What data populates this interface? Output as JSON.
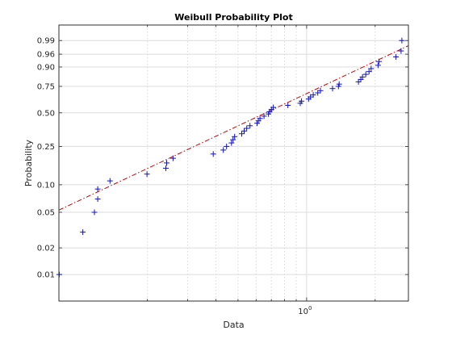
{
  "chart_data": {
    "type": "scatter",
    "title": "Weibull Probability Plot",
    "xlabel": "Data",
    "ylabel": "Probability",
    "x_scale": "log",
    "y_scale": "weibull",
    "xlim": [
      0.0817,
      2.8
    ],
    "ylim": [
      0.005,
      0.999
    ],
    "grid": true,
    "y_ticks": [
      0.01,
      0.02,
      0.05,
      0.1,
      0.25,
      0.5,
      0.75,
      0.9,
      0.96,
      0.99
    ],
    "y_tick_labels": [
      "0.01",
      "0.02",
      "0.05",
      "0.10",
      "0.25",
      "0.50",
      "0.75",
      "0.90",
      "0.96",
      "0.99"
    ],
    "x_minor_grid": [
      0.2,
      0.3,
      0.4,
      0.5,
      0.6,
      0.7,
      0.8,
      0.9,
      2
    ],
    "x_tick": 1,
    "x_tick_label_base": "10",
    "x_tick_label_exp": "0",
    "colors": {
      "markers": "#1010c8",
      "fit_line": "#cc0000"
    },
    "fit_line": {
      "points": [
        [
          0.0817,
          0.0528
        ],
        [
          2.8,
          0.982
        ]
      ]
    },
    "series": [
      {
        "marker": "+",
        "points": [
          [
            0.082,
            0.01
          ],
          [
            0.104,
            0.03
          ],
          [
            0.117,
            0.05
          ],
          [
            0.121,
            0.07
          ],
          [
            0.121,
            0.09
          ],
          [
            0.137,
            0.11
          ],
          [
            0.199,
            0.13
          ],
          [
            0.241,
            0.15
          ],
          [
            0.243,
            0.17
          ],
          [
            0.259,
            0.19
          ],
          [
            0.389,
            0.21
          ],
          [
            0.431,
            0.23
          ],
          [
            0.445,
            0.25
          ],
          [
            0.468,
            0.27
          ],
          [
            0.475,
            0.29
          ],
          [
            0.483,
            0.31
          ],
          [
            0.519,
            0.33
          ],
          [
            0.532,
            0.35
          ],
          [
            0.546,
            0.37
          ],
          [
            0.564,
            0.39
          ],
          [
            0.606,
            0.41
          ],
          [
            0.614,
            0.43
          ],
          [
            0.624,
            0.45
          ],
          [
            0.65,
            0.47
          ],
          [
            0.68,
            0.49
          ],
          [
            0.688,
            0.51
          ],
          [
            0.701,
            0.53
          ],
          [
            0.714,
            0.55
          ],
          [
            0.828,
            0.57
          ],
          [
            0.938,
            0.59
          ],
          [
            0.95,
            0.61
          ],
          [
            1.02,
            0.63
          ],
          [
            1.04,
            0.65
          ],
          [
            1.07,
            0.67
          ],
          [
            1.12,
            0.69
          ],
          [
            1.15,
            0.71
          ],
          [
            1.3,
            0.73
          ],
          [
            1.38,
            0.75
          ],
          [
            1.39,
            0.77
          ],
          [
            1.69,
            0.79
          ],
          [
            1.73,
            0.81
          ],
          [
            1.76,
            0.83
          ],
          [
            1.82,
            0.85
          ],
          [
            1.88,
            0.87
          ],
          [
            1.92,
            0.89
          ],
          [
            2.06,
            0.91
          ],
          [
            2.08,
            0.93
          ],
          [
            2.47,
            0.95
          ],
          [
            2.6,
            0.97
          ],
          [
            2.62,
            0.99
          ]
        ]
      }
    ]
  }
}
